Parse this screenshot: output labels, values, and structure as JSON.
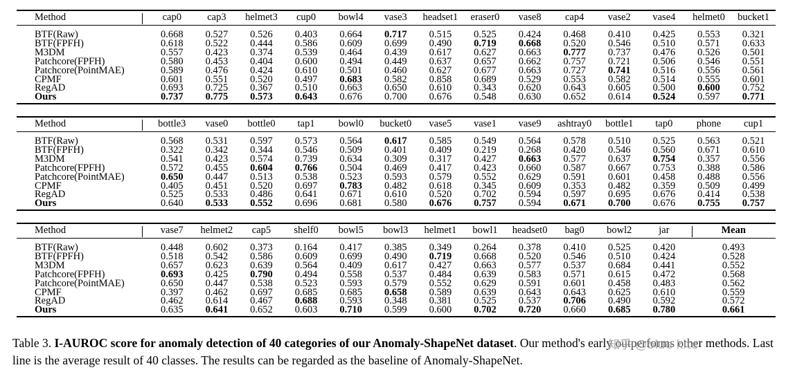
{
  "tables": [
    {
      "columns": [
        "cap0",
        "cap3",
        "helmet3",
        "cup0",
        "bowl4",
        "vase3",
        "headset1",
        "eraser0",
        "vase8",
        "cap4",
        "vase2",
        "vase4",
        "helmet0",
        "bucket1"
      ],
      "rows": [
        {
          "method": "BTF(Raw)",
          "values": [
            "0.668",
            "0.527",
            "0.526",
            "0.403",
            "0.664",
            "0.717",
            "0.515",
            "0.525",
            "0.424",
            "0.468",
            "0.410",
            "0.425",
            "0.553",
            "0.321"
          ],
          "bold": [
            5
          ]
        },
        {
          "method": "BTF(FPFH)",
          "values": [
            "0.618",
            "0.522",
            "0.444",
            "0.586",
            "0.609",
            "0.699",
            "0.490",
            "0.719",
            "0.668",
            "0.520",
            "0.546",
            "0.510",
            "0.571",
            "0.633"
          ],
          "bold": [
            7,
            8
          ]
        },
        {
          "method": "M3DM",
          "values": [
            "0.557",
            "0.423",
            "0.374",
            "0.539",
            "0.464",
            "0.439",
            "0.617",
            "0.627",
            "0.663",
            "0.777",
            "0.737",
            "0.476",
            "0.526",
            "0.501"
          ],
          "bold": [
            9
          ]
        },
        {
          "method": "Patchcore(FPFH)",
          "values": [
            "0.580",
            "0.453",
            "0.404",
            "0.600",
            "0.494",
            "0.449",
            "0.637",
            "0.657",
            "0.662",
            "0.757",
            "0.721",
            "0.506",
            "0.546",
            "0.551"
          ],
          "bold": []
        },
        {
          "method": "Patchcore(PointMAE)",
          "values": [
            "0.589",
            "0.476",
            "0.424",
            "0.610",
            "0.501",
            "0.460",
            "0.627",
            "0.677",
            "0.663",
            "0.727",
            "0.741",
            "0.516",
            "0.556",
            "0.561"
          ],
          "bold": [
            10
          ]
        },
        {
          "method": "CPMF",
          "values": [
            "0.601",
            "0.551",
            "0.520",
            "0.497",
            "0.683",
            "0.582",
            "0.858",
            "0.689",
            "0.529",
            "0.553",
            "0.582",
            "0.514",
            "0.555",
            "0.601"
          ],
          "bold": [
            4
          ]
        },
        {
          "method": "RegAD",
          "values": [
            "0.693",
            "0.725",
            "0.367",
            "0.510",
            "0.663",
            "0.650",
            "0.610",
            "0.343",
            "0.620",
            "0.643",
            "0.605",
            "0.500",
            "0.600",
            "0.752"
          ],
          "bold": [
            12
          ]
        },
        {
          "method": "Ours",
          "values": [
            "0.737",
            "0.775",
            "0.573",
            "0.643",
            "0.676",
            "0.700",
            "0.676",
            "0.548",
            "0.630",
            "0.652",
            "0.614",
            "0.524",
            "0.597",
            "0.771"
          ],
          "bold": [
            0,
            1,
            2,
            3,
            11,
            13
          ],
          "method_bold": true
        }
      ]
    },
    {
      "columns": [
        "bottle3",
        "vase0",
        "bottle0",
        "tap1",
        "bowl0",
        "bucket0",
        "vase5",
        "vase1",
        "vase9",
        "ashtray0",
        "bottle1",
        "tap0",
        "phone",
        "cup1"
      ],
      "rows": [
        {
          "method": "BTF(Raw)",
          "values": [
            "0.568",
            "0.531",
            "0.597",
            "0.573",
            "0.564",
            "0.617",
            "0.585",
            "0.549",
            "0.564",
            "0.578",
            "0.510",
            "0.525",
            "0.563",
            "0.521"
          ],
          "bold": [
            5
          ]
        },
        {
          "method": "BTF(FPFH)",
          "values": [
            "0.322",
            "0.342",
            "0.344",
            "0.546",
            "0.509",
            "0.401",
            "0.409",
            "0.219",
            "0.268",
            "0.420",
            "0.546",
            "0.560",
            "0.671",
            "0.610"
          ],
          "bold": []
        },
        {
          "method": "M3DM",
          "values": [
            "0.541",
            "0.423",
            "0.574",
            "0.739",
            "0.634",
            "0.309",
            "0.317",
            "0.427",
            "0.663",
            "0.577",
            "0.637",
            "0.754",
            "0.357",
            "0.556"
          ],
          "bold": [
            8,
            11
          ]
        },
        {
          "method": "Patchcore(FPFH)",
          "values": [
            "0.572",
            "0.455",
            "0.604",
            "0.766",
            "0.504",
            "0.469",
            "0.417",
            "0.423",
            "0.660",
            "0.587",
            "0.667",
            "0.753",
            "0.388",
            "0.586"
          ],
          "bold": [
            2,
            3
          ]
        },
        {
          "method": "Patchcore(PointMAE)",
          "values": [
            "0.650",
            "0.447",
            "0.513",
            "0.538",
            "0.523",
            "0.593",
            "0.579",
            "0.552",
            "0.629",
            "0.591",
            "0.601",
            "0.458",
            "0.488",
            "0.556"
          ],
          "bold": [
            0
          ]
        },
        {
          "method": "CPMF",
          "values": [
            "0.405",
            "0.451",
            "0.520",
            "0.697",
            "0.783",
            "0.482",
            "0.618",
            "0.345",
            "0.609",
            "0.353",
            "0.482",
            "0.359",
            "0.509",
            "0.499"
          ],
          "bold": [
            4
          ]
        },
        {
          "method": "RegAD",
          "values": [
            "0.525",
            "0.533",
            "0.486",
            "0.641",
            "0.671",
            "0.610",
            "0.520",
            "0.702",
            "0.594",
            "0.597",
            "0.695",
            "0.676",
            "0.414",
            "0.538"
          ],
          "bold": []
        },
        {
          "method": "Ours",
          "values": [
            "0.640",
            "0.533",
            "0.552",
            "0.696",
            "0.681",
            "0.580",
            "0.676",
            "0.757",
            "0.594",
            "0.671",
            "0.700",
            "0.676",
            "0.755",
            "0.757"
          ],
          "bold": [
            1,
            2,
            6,
            7,
            9,
            10,
            12,
            13
          ],
          "method_bold": true
        }
      ]
    },
    {
      "columns": [
        "vase7",
        "helmet2",
        "cap5",
        "shelf0",
        "bowl5",
        "bowl3",
        "helmet1",
        "bowl1",
        "headset0",
        "bag0",
        "bowl2",
        "jar"
      ],
      "mean_label": "Mean",
      "rows": [
        {
          "method": "BTF(Raw)",
          "values": [
            "0.448",
            "0.602",
            "0.373",
            "0.164",
            "0.417",
            "0.385",
            "0.349",
            "0.264",
            "0.378",
            "0.410",
            "0.525",
            "0.420"
          ],
          "mean": "0.493",
          "bold": []
        },
        {
          "method": "BTF(FPFH)",
          "values": [
            "0.518",
            "0.542",
            "0.586",
            "0.609",
            "0.699",
            "0.490",
            "0.719",
            "0.668",
            "0.520",
            "0.546",
            "0.510",
            "0.424"
          ],
          "mean": "0.528",
          "bold": [
            6
          ]
        },
        {
          "method": "M3DM",
          "values": [
            "0.657",
            "0.623",
            "0.639",
            "0.564",
            "0.409",
            "0.617",
            "0.427",
            "0.663",
            "0.577",
            "0.537",
            "0.684",
            "0.441"
          ],
          "mean": "0.552",
          "bold": []
        },
        {
          "method": "Patchcore(FPFH)",
          "values": [
            "0.693",
            "0.425",
            "0.790",
            "0.494",
            "0.558",
            "0.537",
            "0.484",
            "0.639",
            "0.583",
            "0.571",
            "0.615",
            "0.472"
          ],
          "mean": "0.568",
          "bold": [
            0,
            2
          ]
        },
        {
          "method": "Patchcore(PointMAE)",
          "values": [
            "0.650",
            "0.447",
            "0.538",
            "0.523",
            "0.593",
            "0.579",
            "0.552",
            "0.629",
            "0.591",
            "0.601",
            "0.458",
            "0.483"
          ],
          "mean": "0.562",
          "bold": []
        },
        {
          "method": "CPMF",
          "values": [
            "0.397",
            "0.462",
            "0.697",
            "0.685",
            "0.685",
            "0.658",
            "0.589",
            "0.639",
            "0.643",
            "0.643",
            "0.625",
            "0.610"
          ],
          "mean": "0.559",
          "bold": [
            5
          ]
        },
        {
          "method": "RegAD",
          "values": [
            "0.462",
            "0.614",
            "0.467",
            "0.688",
            "0.593",
            "0.348",
            "0.381",
            "0.525",
            "0.537",
            "0.706",
            "0.490",
            "0.592"
          ],
          "mean": "0.572",
          "bold": [
            3,
            9
          ]
        },
        {
          "method": "Ours",
          "values": [
            "0.635",
            "0.641",
            "0.652",
            "0.603",
            "0.710",
            "0.599",
            "0.600",
            "0.702",
            "0.720",
            "0.660",
            "0.685",
            "0.780"
          ],
          "mean": "0.661",
          "bold": [
            1,
            4,
            7,
            8,
            10,
            11
          ],
          "mean_bold": true,
          "method_bold": true
        }
      ]
    }
  ],
  "method_header": "Method",
  "caption": {
    "label": "Table 3.",
    "lead": "I-AUROC score for anomaly detection of 40 categories of our Anomaly-ShapeNet dataset",
    "rest": ". Our method's early outperforms other methods. Last line is the average result of 40 classes. The results can be regarded as the baseline of Anomaly-ShapeNet."
  },
  "watermark": "知乎 @blue kite"
}
